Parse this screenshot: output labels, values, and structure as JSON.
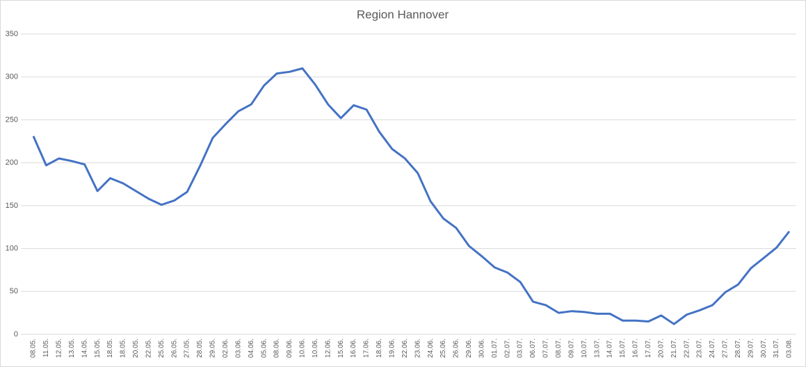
{
  "chart_data": {
    "type": "line",
    "title": "Region Hannover",
    "categories": [
      "08.05.",
      "11.05.",
      "12.05.",
      "13.05.",
      "14.05.",
      "15.05.",
      "18.05.",
      "18.05.",
      "20.05.",
      "22.05.",
      "25.05.",
      "26.05.",
      "27.05.",
      "28.05.",
      "29.05.",
      "02.06.",
      "03.06.",
      "04.06.",
      "05.06.",
      "08.06.",
      "09.06.",
      "10.06.",
      "10.06.",
      "12.06.",
      "15.06.",
      "16.06.",
      "17.06.",
      "18.06.",
      "19.06.",
      "22.06.",
      "23.06.",
      "24.06.",
      "25.06.",
      "26.06.",
      "29.06.",
      "30.06.",
      "01.07.",
      "02.07.",
      "03.07.",
      "06.07.",
      "07.07.",
      "08.07.",
      "09.07.",
      "10.07.",
      "13.07.",
      "14.07.",
      "15.07.",
      "16.07.",
      "17.07.",
      "20.07.",
      "21.07.",
      "22.07.",
      "23.07.",
      "24.07.",
      "27.07.",
      "28.07.",
      "29.07.",
      "30.07.",
      "31.07.",
      "03.08."
    ],
    "series": [
      {
        "color": "#4472c4",
        "values": [
          231,
          197,
          205,
          202,
          198,
          167,
          182,
          176,
          167,
          158,
          151,
          156,
          166,
          196,
          229,
          245,
          260,
          268,
          290,
          304,
          306,
          310,
          291,
          268,
          252,
          267,
          262,
          236,
          216,
          205,
          188,
          155,
          135,
          124,
          103,
          91,
          78,
          72,
          61,
          38,
          34,
          25,
          27,
          26,
          24,
          24,
          16,
          16,
          15,
          22,
          12,
          23,
          28,
          34,
          49,
          58,
          77,
          89,
          101,
          120
        ]
      }
    ],
    "ylim": [
      0,
      350
    ],
    "yticks": [
      0,
      50,
      100,
      150,
      200,
      250,
      300,
      350
    ],
    "grid": true
  }
}
